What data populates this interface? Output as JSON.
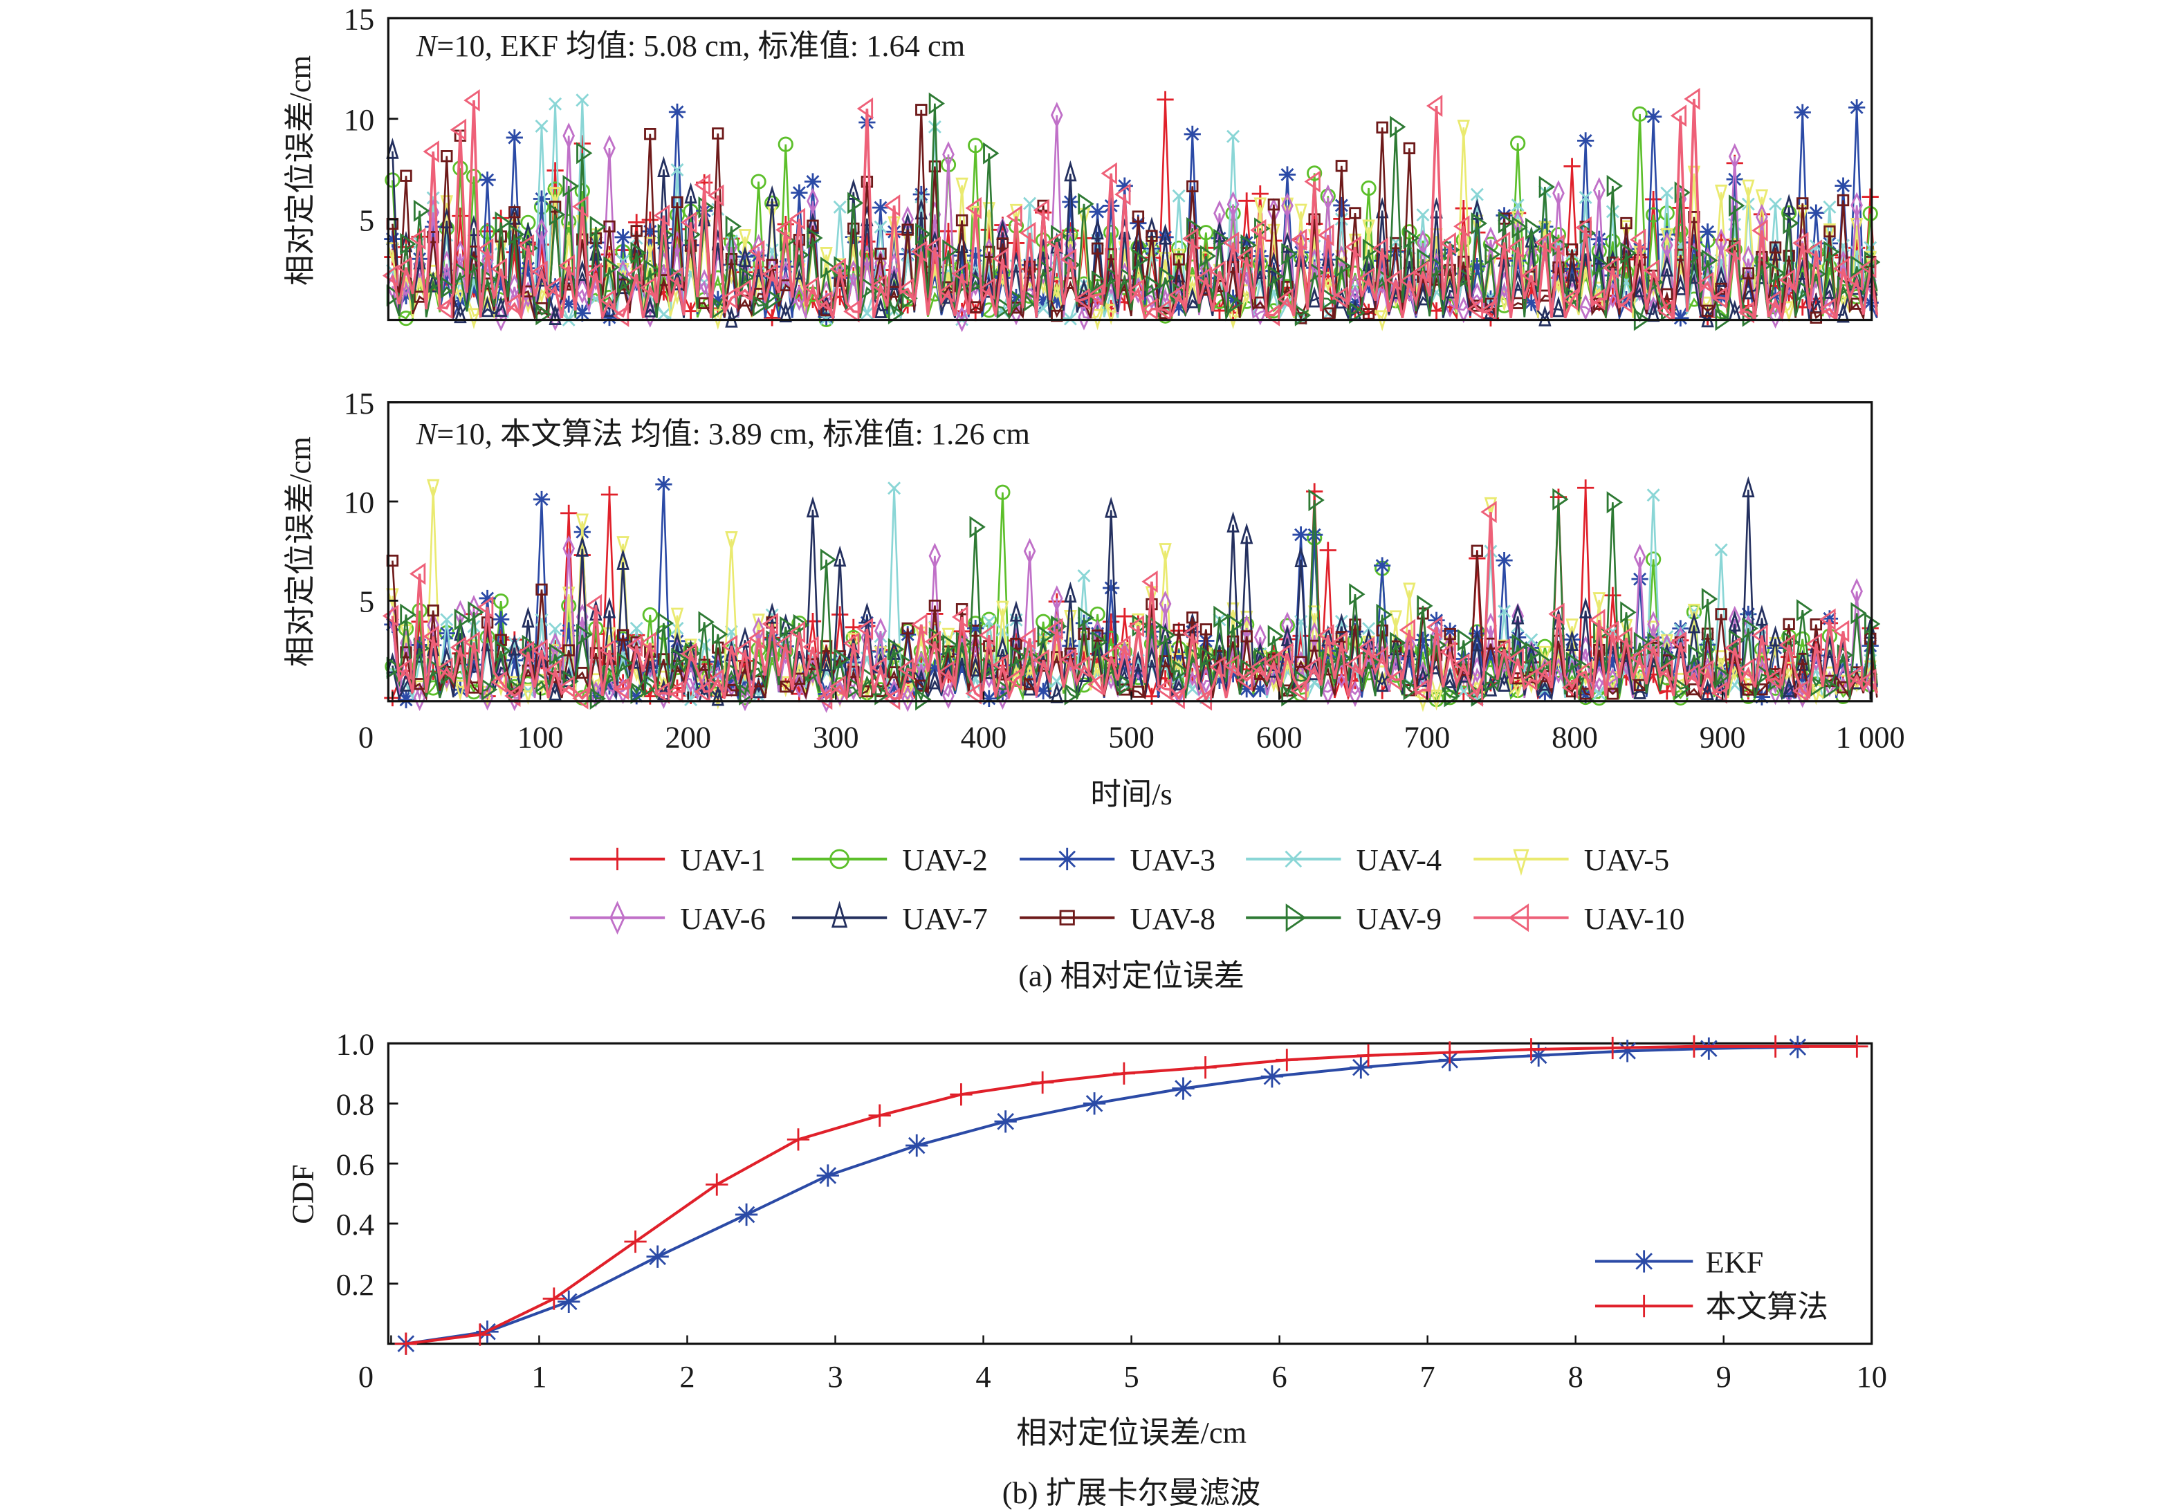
{
  "figure": {
    "caption_a": "(a) 相对定位误差",
    "caption_b": "(b) 扩展卡尔曼滤波"
  },
  "chart_data": [
    {
      "type": "line",
      "panel": "top",
      "annotation_italic": "N",
      "annotation": "=10, EKF  均值: 5.08 cm, 标准值: 1.64 cm",
      "mean_cm": 5.08,
      "std_cm": 1.64,
      "xlabel": "",
      "ylabel": "相对定位误差/cm",
      "xlim": [
        0,
        1000
      ],
      "ylim": [
        0,
        15
      ],
      "yticks": [
        "5",
        "10",
        "15"
      ],
      "grid": false
    },
    {
      "type": "line",
      "panel": "middle",
      "annotation_italic": "N",
      "annotation": "=10, 本文算法  均值: 3.89 cm, 标准值: 1.26 cm",
      "mean_cm": 3.89,
      "std_cm": 1.26,
      "xlabel": "时间/s",
      "ylabel": "相对定位误差/cm",
      "xlim": [
        0,
        1000
      ],
      "ylim": [
        0,
        15
      ],
      "xticks": [
        "0",
        "100",
        "200",
        "300",
        "400",
        "500",
        "600",
        "700",
        "800",
        "900",
        "1 000"
      ],
      "yticks": [
        "5",
        "10",
        "15"
      ],
      "grid": false
    },
    {
      "type": "line",
      "panel": "cdf",
      "xlabel": "相对定位误差/cm",
      "ylabel": "CDF",
      "xlim": [
        0,
        10
      ],
      "ylim": [
        0,
        1
      ],
      "xticks": [
        "0",
        "1",
        "2",
        "3",
        "4",
        "5",
        "6",
        "7",
        "8",
        "9",
        "10"
      ],
      "yticks": [
        "0.2",
        "0.4",
        "0.6",
        "0.8",
        "1.0"
      ],
      "grid": false,
      "legend_position": "bottom-right",
      "series": [
        {
          "name": "EKF",
          "color": "#2b4aa6",
          "marker": "asterisk",
          "x": [
            0.1,
            0.65,
            1.2,
            1.8,
            2.4,
            2.95,
            3.55,
            4.15,
            4.75,
            5.35,
            5.95,
            6.55,
            7.15,
            7.75,
            8.35,
            8.9,
            9.5
          ],
          "y": [
            0.0,
            0.04,
            0.14,
            0.29,
            0.43,
            0.56,
            0.66,
            0.74,
            0.8,
            0.85,
            0.89,
            0.92,
            0.945,
            0.96,
            0.975,
            0.983,
            0.988
          ]
        },
        {
          "name": "本文算法",
          "color": "#e0202a",
          "marker": "plus",
          "x": [
            0.1,
            0.6,
            1.1,
            1.65,
            2.2,
            2.75,
            3.3,
            3.85,
            4.4,
            4.95,
            5.5,
            6.05,
            6.6,
            7.15,
            7.7,
            8.25,
            8.8,
            9.35,
            9.9
          ],
          "y": [
            0.0,
            0.03,
            0.15,
            0.34,
            0.53,
            0.68,
            0.76,
            0.83,
            0.87,
            0.9,
            0.92,
            0.945,
            0.96,
            0.97,
            0.98,
            0.985,
            0.99,
            0.99,
            0.99
          ]
        }
      ]
    }
  ],
  "uav_legend": [
    {
      "name": "UAV-1",
      "color": "#e0202a",
      "marker": "plus"
    },
    {
      "name": "UAV-2",
      "color": "#5cbf2a",
      "marker": "circle"
    },
    {
      "name": "UAV-3",
      "color": "#2b4aa6",
      "marker": "asterisk"
    },
    {
      "name": "UAV-4",
      "color": "#8ad6d6",
      "marker": "x"
    },
    {
      "name": "UAV-5",
      "color": "#eaea70",
      "marker": "triangle-down"
    },
    {
      "name": "UAV-6",
      "color": "#c070c8",
      "marker": "diamond"
    },
    {
      "name": "UAV-7",
      "color": "#24305f",
      "marker": "triangle-up"
    },
    {
      "name": "UAV-8",
      "color": "#6e1a1a",
      "marker": "square"
    },
    {
      "name": "UAV-9",
      "color": "#2e7a34",
      "marker": "triangle-right"
    },
    {
      "name": "UAV-10",
      "color": "#ee6078",
      "marker": "triangle-left"
    }
  ]
}
